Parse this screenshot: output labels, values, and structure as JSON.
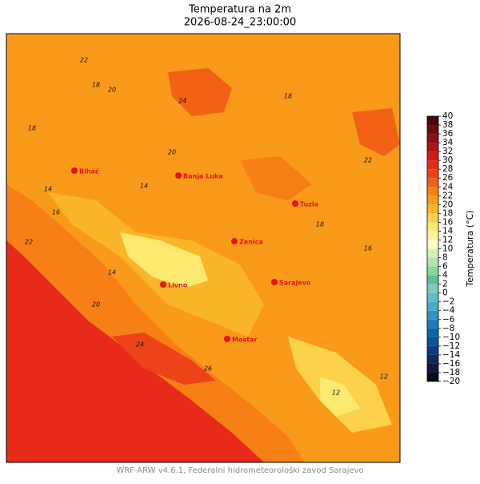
{
  "map": {
    "title": "Temperatura na 2m",
    "subtitle": "2026-08-24_23:00:00",
    "footer": "WRF-ARW v4.6.1, Federalni hidrometeorološki zavod Sarajevo",
    "cities": [
      "Bihać",
      "Banja Luka",
      "Tuzla",
      "Zenica",
      "Livno",
      "Sarajevo",
      "Mostar"
    ],
    "contour_labels": [
      18,
      22,
      24,
      20,
      18,
      14,
      16,
      14,
      20,
      18,
      22,
      26,
      24,
      12,
      14,
      20,
      18,
      16,
      22,
      12
    ],
    "colorbar": {
      "label": "Temperatura (°C)",
      "range": [
        -20,
        40
      ],
      "ticks": [
        {
          "value": -20,
          "label": "−20"
        },
        {
          "value": -18,
          "label": "−18"
        },
        {
          "value": -16,
          "label": "−16"
        },
        {
          "value": -14,
          "label": "−14"
        },
        {
          "value": -12,
          "label": "−12"
        },
        {
          "value": -10,
          "label": "−10"
        },
        {
          "value": -8,
          "label": "−8"
        },
        {
          "value": -6,
          "label": "−6"
        },
        {
          "value": -4,
          "label": "−4"
        },
        {
          "value": -2,
          "label": "−2"
        },
        0,
        2,
        4,
        6,
        8,
        10,
        12,
        14,
        16,
        18,
        20,
        22,
        24,
        26,
        28,
        30,
        32,
        34,
        36,
        38,
        40
      ],
      "colors": [
        "#0a0a1e",
        "#101a3a",
        "#0d2a5a",
        "#0c3d7a",
        "#0b5295",
        "#0a66aa",
        "#1a7db8",
        "#3094c2",
        "#4aa9c8",
        "#64bcc4",
        "#7fcdbb",
        "#5fbf9a",
        "#8fd3a0",
        "#b5e3ae",
        "#d8f0b8",
        "#fffbc8",
        "#fff5a0",
        "#fde870",
        "#fcd24a",
        "#fbb528",
        "#f99a1a",
        "#f67f16",
        "#f26114",
        "#ee4318",
        "#e82a1a",
        "#cf1c1a",
        "#b0141a",
        "#8f0e14",
        "#6d0a10",
        "#4a060a"
      ]
    }
  }
}
